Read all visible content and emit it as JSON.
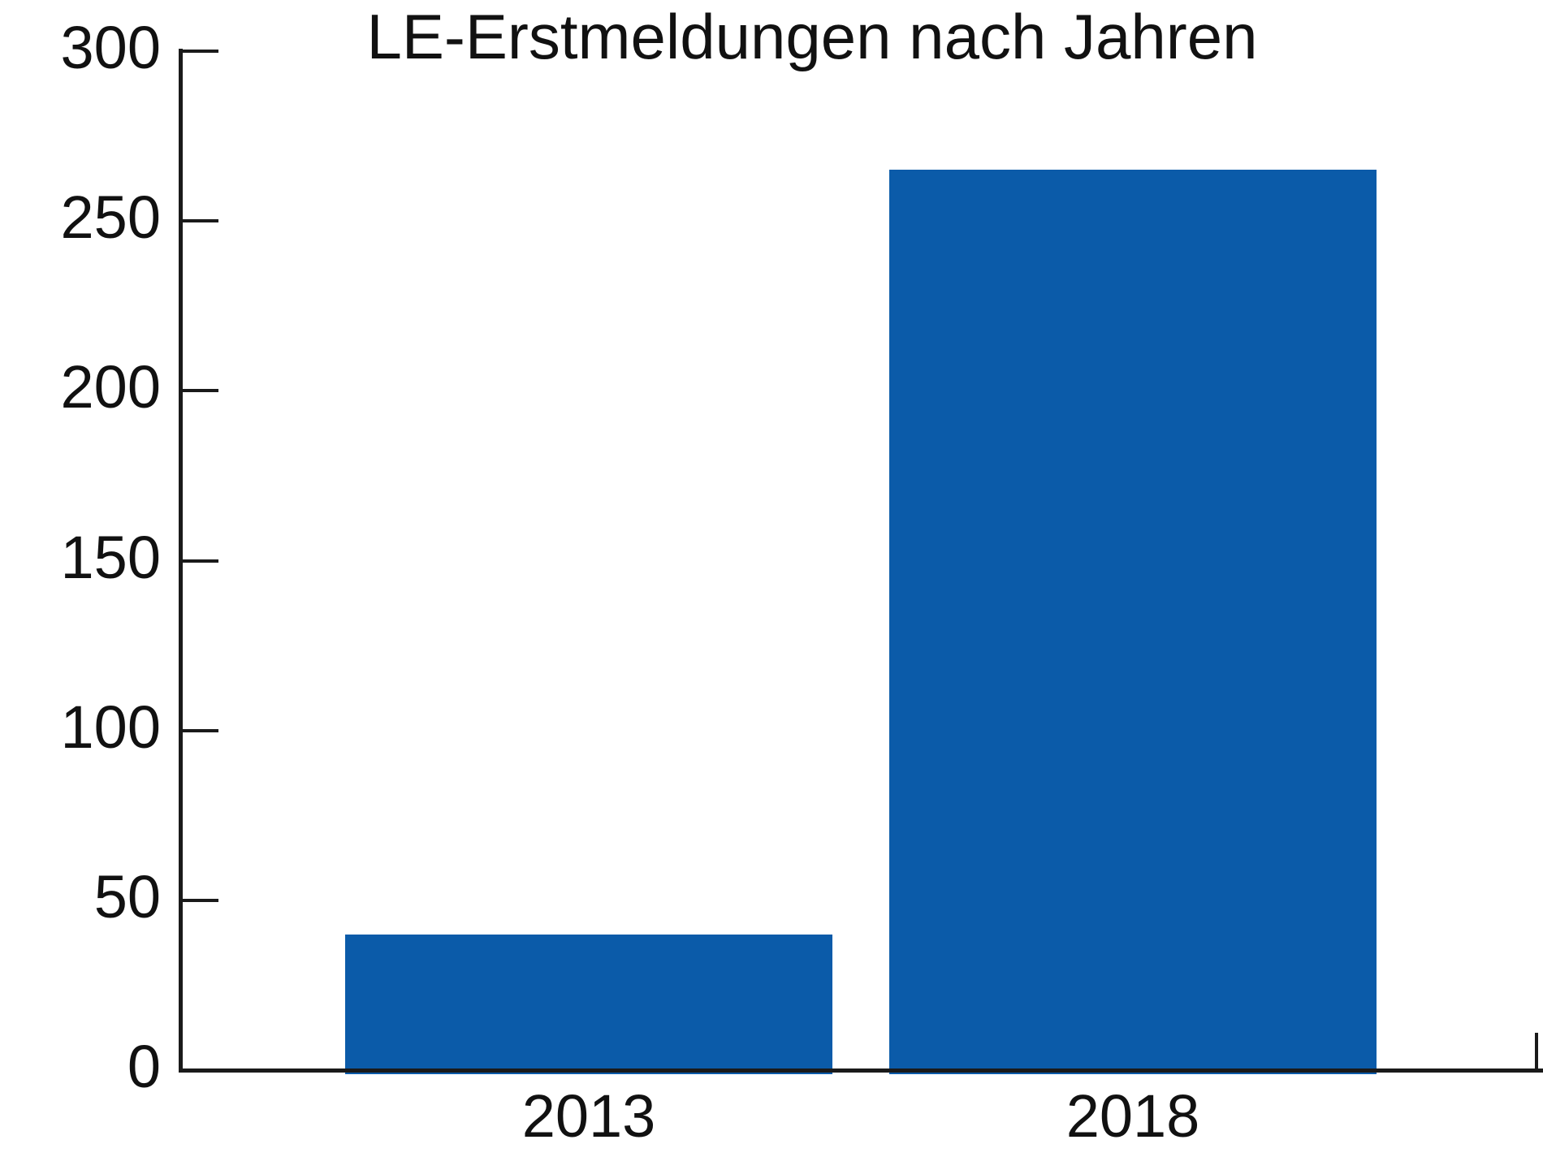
{
  "chart_data": {
    "type": "bar",
    "title": "LE-Erstmeldungen nach Jahren",
    "categories": [
      "2013",
      "2018"
    ],
    "values": [
      40,
      265
    ],
    "xlabel": "",
    "ylabel": "",
    "ylim": [
      0,
      300
    ],
    "yticks": [
      0,
      50,
      100,
      150,
      200,
      250,
      300
    ],
    "grid": false,
    "legend": null,
    "bar_color": "#0b5ba9",
    "axis_color": "#1a1a1a",
    "text_color": "#111111",
    "background": "#ffffff"
  }
}
